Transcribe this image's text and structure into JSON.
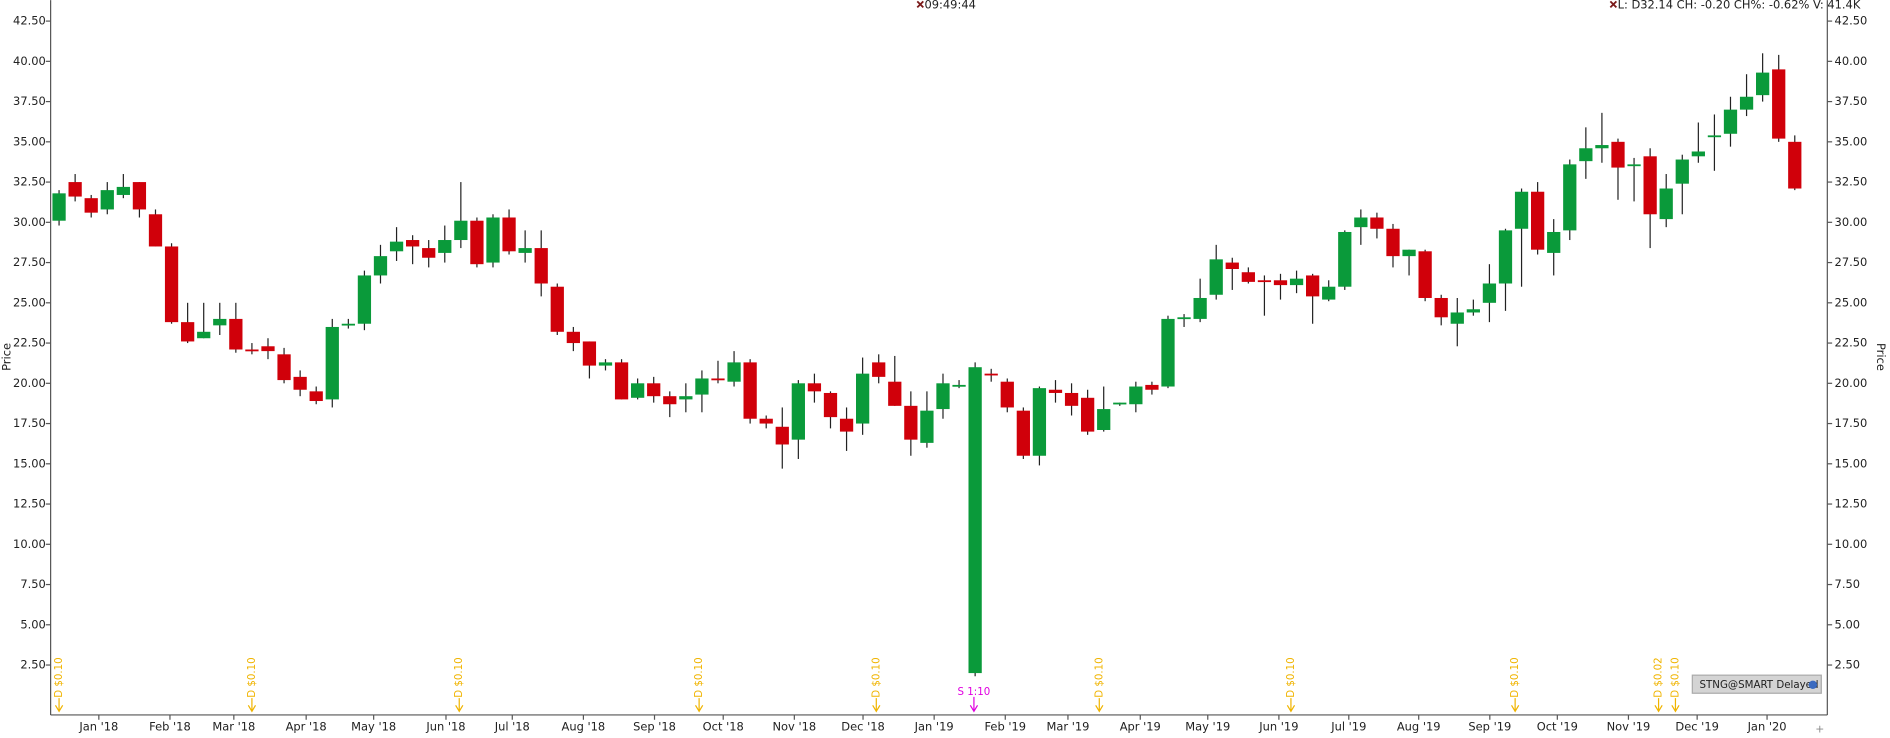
{
  "chart_data": {
    "type": "candlestick",
    "time_label": "09:49:44",
    "quote_label": "L: D32.14 CH: -0.20 CH%: -0.62% V: 41.4K",
    "ylabel": "Price",
    "y2label": "Price",
    "symbol_badge": "STNG@SMART Delayed",
    "xtick_labels": [
      "Jan '18",
      "Feb '18",
      "Mar '18",
      "Apr '18",
      "May '18",
      "Jun '18",
      "Jul '18",
      "Aug '18",
      "Sep '18",
      "Oct '18",
      "Nov '18",
      "Dec '18",
      "Jan '19",
      "Feb '19",
      "Mar '19",
      "Apr '19",
      "May '19",
      "Jun '19",
      "Jul '19",
      "Aug '19",
      "Sep '19",
      "Oct '19",
      "Nov '19",
      "Dec '19",
      "Jan '20"
    ],
    "ylim": [
      -0.6,
      43.8
    ],
    "yticks": [
      {
        "value": 2.5,
        "label": "2.50"
      },
      {
        "value": 5,
        "label": "5.00"
      },
      {
        "value": 7.5,
        "label": "7.50"
      },
      {
        "value": 10,
        "label": "10.00"
      },
      {
        "value": 12.5,
        "label": "12.50"
      },
      {
        "value": 15,
        "label": "15.00"
      },
      {
        "value": 17.5,
        "label": "17.50"
      },
      {
        "value": 20,
        "label": "20.00"
      },
      {
        "value": 22.5,
        "label": "22.50"
      },
      {
        "value": 25,
        "label": "25.00"
      },
      {
        "value": 27.5,
        "label": "27.50"
      },
      {
        "value": 30,
        "label": "30.00"
      },
      {
        "value": 32.5,
        "label": "32.50"
      },
      {
        "value": 35,
        "label": "35.00"
      },
      {
        "value": 37.5,
        "label": "37.50"
      },
      {
        "value": 40,
        "label": "40.00"
      },
      {
        "value": 42.5,
        "label": "42.50"
      }
    ],
    "up_color": "#0a9a3a",
    "down_color": "#d0000a",
    "open": [
      30.1,
      32.5,
      31.5,
      30.8,
      31.7,
      32.5,
      30.5,
      28.5,
      23.8,
      22.8,
      23.6,
      24,
      22.1,
      22.3,
      21.8,
      20.4,
      19.5,
      19,
      23.7,
      23.7,
      26.7,
      28.2,
      28.9,
      28.4,
      28.1,
      28.9,
      30.1,
      27.5,
      30.3,
      28.1,
      28.4,
      26,
      23.2,
      22.6,
      21.1,
      21.3,
      19.1,
      20,
      19.2,
      19,
      19.3,
      20.3,
      20.1,
      21.3,
      17.8,
      17.3,
      16.5,
      20,
      19.4,
      17.8,
      17.5,
      21.3,
      20.1,
      18.6,
      16.3,
      18.4,
      19.9,
      2,
      20.6,
      20.1,
      18.3,
      15.5,
      19.6,
      19.4,
      19.1,
      17.1,
      18.7,
      18.7,
      19.9,
      19.8,
      24,
      24,
      25.5,
      27.5,
      26.9,
      26.4,
      26.4,
      26.1,
      26.7,
      25.2,
      26,
      29.7,
      30.3,
      29.6,
      27.9,
      28.2,
      25.3,
      23.7,
      24.4,
      25,
      26.2,
      29.6,
      31.9,
      28.1,
      29.5,
      33.8,
      34.6,
      35,
      33.6,
      34.1,
      30.2,
      32.4,
      34.1,
      35.3,
      35.5,
      37,
      37.9,
      39.5,
      35
    ],
    "high": [
      32,
      33,
      31.7,
      32.5,
      33,
      32.5,
      30.8,
      28.7,
      25,
      25,
      25,
      25,
      22.5,
      22.8,
      22.2,
      20.8,
      19.8,
      24,
      24,
      27,
      28.6,
      29.7,
      29.2,
      28.9,
      29.8,
      32.5,
      30.3,
      30.5,
      30.8,
      29.5,
      29.5,
      26.2,
      23.5,
      22.6,
      21.5,
      21.5,
      20.3,
      20.4,
      19.5,
      20,
      20.8,
      21.4,
      22,
      21.5,
      18,
      18.5,
      20.2,
      20.6,
      19.5,
      18.5,
      21.6,
      21.8,
      21.7,
      19.5,
      19.5,
      20.6,
      20.2,
      21.3,
      20.9,
      20.3,
      18.5,
      19.8,
      20.2,
      20,
      19.6,
      19.8,
      18.8,
      20.1,
      20.1,
      24.2,
      24.3,
      26.5,
      28.6,
      27.8,
      27.2,
      26.7,
      26.8,
      27,
      26.8,
      26.4,
      29.5,
      30.8,
      30.6,
      29.9,
      28.3,
      28.3,
      25.5,
      25.3,
      25.2,
      27.4,
      29.6,
      32.1,
      32.5,
      30.2,
      33.9,
      35.9,
      36.8,
      35.2,
      34,
      34.6,
      33,
      34.2,
      36.2,
      36.7,
      37.8,
      39.2,
      40.5,
      40.4,
      35.4
    ],
    "low": [
      29.8,
      31.3,
      30.3,
      30.5,
      31.5,
      30.3,
      28.5,
      23.7,
      22.5,
      22.8,
      23,
      21.9,
      21.8,
      21.5,
      20,
      19.2,
      18.7,
      18.5,
      23.4,
      23.3,
      26.2,
      27.6,
      27.4,
      27.2,
      27.5,
      28.4,
      27.2,
      27.2,
      28,
      27.5,
      25.4,
      23,
      22,
      20.3,
      20.8,
      19,
      19,
      18.8,
      17.9,
      18.2,
      18.2,
      20,
      19.8,
      17.5,
      17.2,
      14.7,
      15.3,
      18.8,
      17.2,
      15.8,
      16.8,
      20,
      18.6,
      15.5,
      16,
      17.8,
      19.7,
      1.8,
      20.1,
      18.2,
      15.3,
      14.9,
      18.8,
      18,
      16.8,
      17,
      18.6,
      18.2,
      19.3,
      19.7,
      23.5,
      23.8,
      25.2,
      25.8,
      26.2,
      24.2,
      25.2,
      25.6,
      23.7,
      25.1,
      25.8,
      28.6,
      29,
      27.2,
      26.7,
      25.1,
      23.6,
      22.3,
      24.2,
      23.8,
      24.5,
      26,
      28,
      26.7,
      28.9,
      32.7,
      33.7,
      31.4,
      31.3,
      28.4,
      29.7,
      30.5,
      33.7,
      33.2,
      34.7,
      36.6,
      37.5,
      35,
      32
    ],
    "close": [
      31.8,
      31.6,
      30.6,
      32,
      32.2,
      30.8,
      28.5,
      23.8,
      22.6,
      23.2,
      24,
      22.1,
      22,
      22,
      20.2,
      19.6,
      18.9,
      23.5,
      23.7,
      26.7,
      27.9,
      28.8,
      28.5,
      27.8,
      28.9,
      30.1,
      27.4,
      30.3,
      28.2,
      28.4,
      26.2,
      23.2,
      22.5,
      21.1,
      21.3,
      19,
      20,
      19.2,
      18.7,
      19.2,
      20.3,
      20.2,
      21.3,
      17.8,
      17.5,
      16.2,
      20,
      19.5,
      17.9,
      17,
      20.6,
      20.4,
      18.6,
      16.5,
      18.3,
      20,
      19.9,
      21,
      20.5,
      18.5,
      15.5,
      19.7,
      19.4,
      18.6,
      17,
      18.4,
      18.8,
      19.8,
      19.6,
      24,
      24.1,
      25.3,
      27.7,
      27.1,
      26.3,
      26.3,
      26.1,
      26.5,
      25.4,
      26,
      29.4,
      30.3,
      29.6,
      27.9,
      28.3,
      25.3,
      24.1,
      24.4,
      24.6,
      26.2,
      29.5,
      31.9,
      28.3,
      29.4,
      33.6,
      34.6,
      34.8,
      33.4,
      33.6,
      30.5,
      32.1,
      33.9,
      34.4,
      35.4,
      37,
      37.8,
      39.3,
      35.2,
      32.1
    ],
    "events": [
      {
        "kind": "dividend",
        "label": "D $0.10"
      },
      {
        "kind": "dividend",
        "label": "D $0.10"
      },
      {
        "kind": "dividend",
        "label": "D $0.10"
      },
      {
        "kind": "dividend",
        "label": "D $0.10"
      },
      {
        "kind": "dividend",
        "label": "D $0.10"
      },
      {
        "kind": "split",
        "label": "S 1:10"
      },
      {
        "kind": "dividend",
        "label": "D $0.10"
      },
      {
        "kind": "dividend",
        "label": "D $0.10"
      },
      {
        "kind": "dividend",
        "label": "D $0.10"
      },
      {
        "kind": "dividend",
        "label": "D $0.02"
      },
      {
        "kind": "dividend",
        "label": "D $0.10"
      }
    ]
  }
}
